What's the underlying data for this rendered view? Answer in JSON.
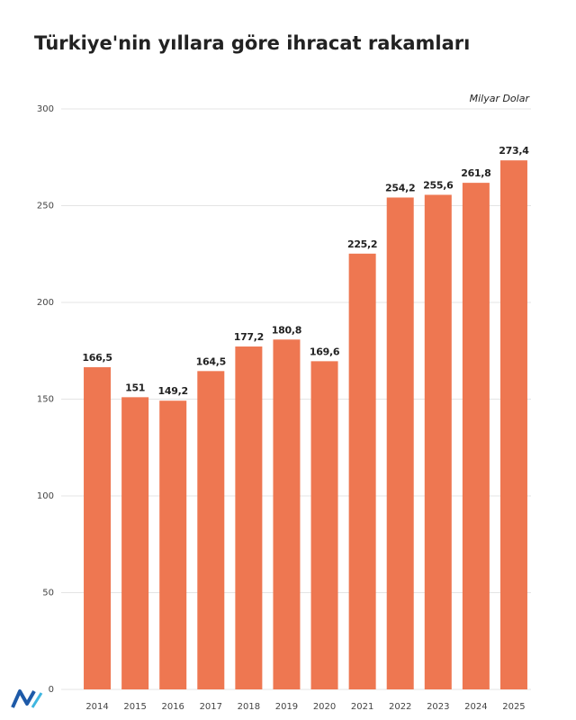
{
  "chart_data": {
    "type": "bar",
    "title": "Türkiye'nin yıllara göre ihracat rakamları",
    "unit_label": "Milyar Dolar",
    "categories": [
      "2014",
      "2015",
      "2016",
      "2017",
      "2018",
      "2019",
      "2020",
      "2021",
      "2022",
      "2023",
      "2024",
      "2025"
    ],
    "values": [
      166.5,
      151,
      149.2,
      164.5,
      177.2,
      180.8,
      169.6,
      225.2,
      254.2,
      255.6,
      261.8,
      273.4
    ],
    "value_labels": [
      "166,5",
      "151",
      "149,2",
      "164,5",
      "177,2",
      "180,8",
      "169,6",
      "225,2",
      "254,2",
      "255,6",
      "261,8",
      "273,4"
    ],
    "color": "#ee7751",
    "ylim": [
      0,
      300
    ],
    "yticks": [
      0,
      50,
      100,
      150,
      200,
      250,
      300
    ],
    "grid": true
  }
}
